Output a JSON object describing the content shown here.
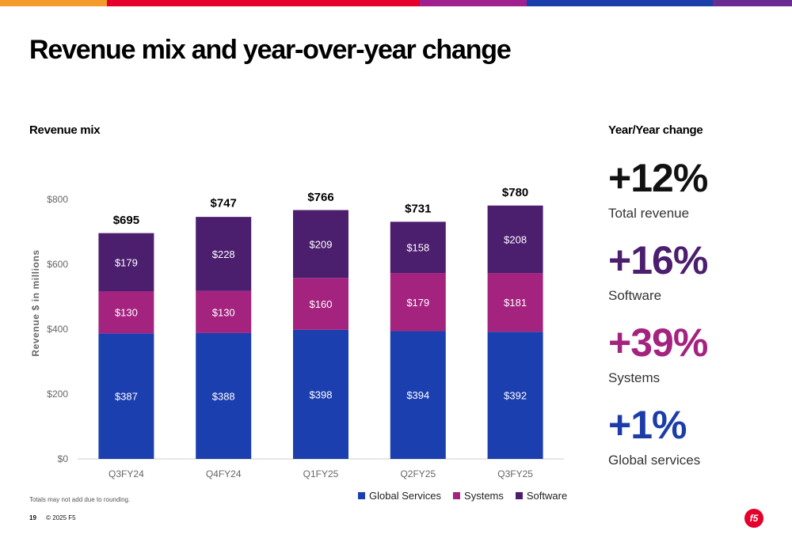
{
  "page": {
    "title": "Revenue mix and year-over-year change",
    "footnote": "Totals may not add due to rounding.",
    "page_number": "19",
    "copyright": "© 2025 F5",
    "logo_text": "f5",
    "top_bar_colors": [
      "#f39c2c",
      "#e4002b",
      "#e4002b",
      "#a0208f",
      "#1a3faa",
      "#6a2c91"
    ]
  },
  "mix": {
    "heading": "Revenue mix"
  },
  "yoy": {
    "heading": "Year/Year change",
    "items": [
      {
        "value": "+12%",
        "label": "Total revenue",
        "color": "#111111"
      },
      {
        "value": "+16%",
        "label": "Software",
        "color": "#4b1e6e"
      },
      {
        "value": "+39%",
        "label": "Systems",
        "color": "#a3237f"
      },
      {
        "value": "+1%",
        "label": "Global services",
        "color": "#1c3da8"
      }
    ]
  },
  "chart_data": {
    "type": "bar",
    "stacked": true,
    "categories": [
      "Q3FY24",
      "Q4FY24",
      "Q1FY25",
      "Q2FY25",
      "Q3FY25"
    ],
    "series": [
      {
        "name": "Global Services",
        "color": "#1c3fb0",
        "values": [
          387,
          388,
          398,
          394,
          392
        ],
        "labels": [
          "$387",
          "$388",
          "$398",
          "$394",
          "$392"
        ]
      },
      {
        "name": "Systems",
        "color": "#a3237f",
        "values": [
          130,
          130,
          160,
          179,
          181
        ],
        "labels": [
          "$130",
          "$130",
          "$160",
          "$179",
          "$181"
        ]
      },
      {
        "name": "Software",
        "color": "#4b1e6e",
        "values": [
          179,
          228,
          209,
          158,
          208
        ],
        "labels": [
          "$179",
          "$228",
          "$209",
          "$158",
          "$208"
        ]
      }
    ],
    "totals": [
      695,
      747,
      766,
      731,
      780
    ],
    "total_labels": [
      "$695",
      "$747",
      "$766",
      "$731",
      "$780"
    ],
    "ylabel": "Revenue $ in millions",
    "ylim": [
      0,
      800
    ],
    "yticks": [
      0,
      200,
      400,
      600,
      800
    ],
    "ytick_labels": [
      "$0",
      "$200",
      "$400",
      "$600",
      "$800"
    ],
    "grid": false,
    "legend_position": "bottom-right"
  }
}
